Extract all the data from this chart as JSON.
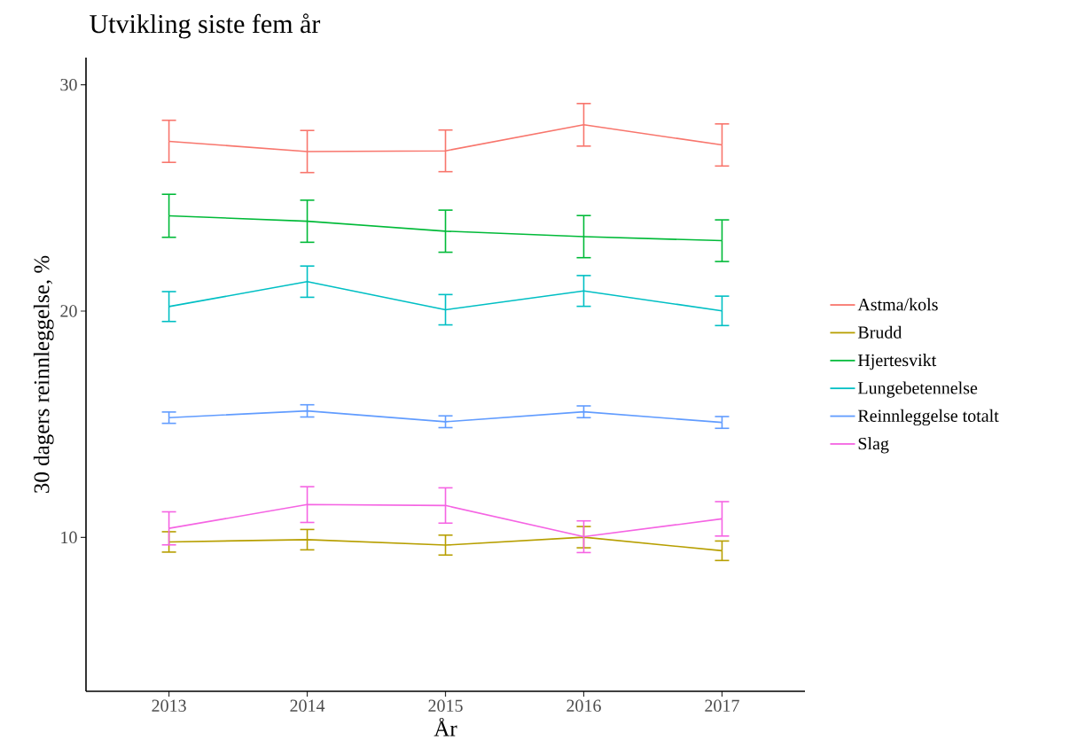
{
  "chart_data": {
    "type": "line",
    "title": "Utvikling siste fem år",
    "xlabel": "År",
    "ylabel": "30 dagers reinnleggelse, %",
    "x": [
      2013,
      2014,
      2015,
      2016,
      2017
    ],
    "xlim": [
      2012.4,
      2017.6
    ],
    "xticks": [
      2013,
      2014,
      2015,
      2016,
      2017
    ],
    "ylim": [
      3.2,
      31.2
    ],
    "yticks": [
      10,
      20,
      30
    ],
    "grid": false,
    "legend": "right",
    "marker": "none",
    "line_style": "solid",
    "series": [
      {
        "name": "Astma/kols",
        "color": "#F8766D",
        "values": [
          27.5,
          27.05,
          27.08,
          28.23,
          27.34
        ],
        "errors": [
          0.93,
          0.93,
          0.92,
          0.94,
          0.93
        ]
      },
      {
        "name": "Brudd",
        "color": "#B79F00",
        "values": [
          9.8,
          9.9,
          9.66,
          10.01,
          9.41
        ],
        "errors": [
          0.45,
          0.45,
          0.44,
          0.47,
          0.43
        ]
      },
      {
        "name": "Hjertesvikt",
        "color": "#00BA38",
        "values": [
          24.21,
          23.97,
          23.53,
          23.29,
          23.11
        ],
        "errors": [
          0.95,
          0.93,
          0.93,
          0.93,
          0.92
        ]
      },
      {
        "name": "Lungebetennelse",
        "color": "#00BFC4",
        "values": [
          20.2,
          21.3,
          20.06,
          20.89,
          20.01
        ],
        "errors": [
          0.66,
          0.69,
          0.67,
          0.68,
          0.65
        ]
      },
      {
        "name": "Reinnleggelse totalt",
        "color": "#619CFF",
        "values": [
          15.29,
          15.59,
          15.11,
          15.55,
          15.08
        ],
        "errors": [
          0.25,
          0.27,
          0.26,
          0.26,
          0.26
        ]
      },
      {
        "name": "Slag",
        "color": "#F564E3",
        "values": [
          10.4,
          11.45,
          11.41,
          10.03,
          10.82
        ],
        "errors": [
          0.73,
          0.79,
          0.78,
          0.7,
          0.76
        ]
      }
    ]
  }
}
